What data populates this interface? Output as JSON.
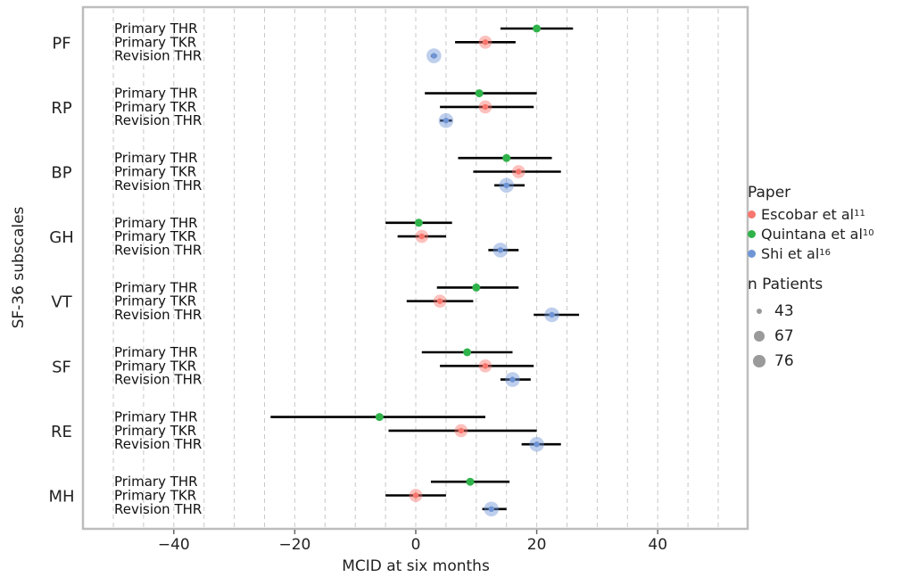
{
  "chart_data": {
    "type": "scatter",
    "xlabel": "MCID at six months",
    "ylabel": "SF-36 subscales",
    "xlim": [
      -55,
      54
    ],
    "x_ticks": [
      -40,
      -20,
      0,
      20,
      40
    ],
    "x_tick_labels": [
      "−40",
      "−20",
      "0",
      "20",
      "40"
    ],
    "minor_grid": [
      -50,
      -45,
      -35,
      -30,
      -25,
      -15,
      -10,
      -5,
      5,
      10,
      15,
      25,
      30,
      35,
      45,
      50
    ],
    "grid": true,
    "legend_position": "right",
    "colors": {
      "Escobar": "#f8766d",
      "Quintana": "#2fb34a",
      "Shi": "#6f95d6"
    },
    "row_labels": [
      "Primary THR",
      "Primary TKR",
      "Revision THR"
    ],
    "groups": [
      {
        "name": "PF",
        "rows": [
          {
            "label": "Primary THR",
            "paper": "Quintana",
            "x": 20,
            "lo": 14,
            "hi": 26,
            "n": 43
          },
          {
            "label": "Primary TKR",
            "paper": "Escobar",
            "x": 11.5,
            "lo": 6.5,
            "hi": 16.5,
            "n": 67
          },
          {
            "label": "Revision THR",
            "paper": "Shi",
            "x": 3,
            "lo": 2.5,
            "hi": 3.5,
            "n": 76
          }
        ]
      },
      {
        "name": "RP",
        "rows": [
          {
            "label": "Primary THR",
            "paper": "Quintana",
            "x": 10.5,
            "lo": 1.5,
            "hi": 20,
            "n": 43
          },
          {
            "label": "Primary TKR",
            "paper": "Escobar",
            "x": 11.5,
            "lo": 4,
            "hi": 19.5,
            "n": 67
          },
          {
            "label": "Revision THR",
            "paper": "Shi",
            "x": 5,
            "lo": 4,
            "hi": 6,
            "n": 76
          }
        ]
      },
      {
        "name": "BP",
        "rows": [
          {
            "label": "Primary THR",
            "paper": "Quintana",
            "x": 15,
            "lo": 7,
            "hi": 22.5,
            "n": 43
          },
          {
            "label": "Primary TKR",
            "paper": "Escobar",
            "x": 17,
            "lo": 9.5,
            "hi": 24,
            "n": 67
          },
          {
            "label": "Revision THR",
            "paper": "Shi",
            "x": 15,
            "lo": 13,
            "hi": 18,
            "n": 76
          }
        ]
      },
      {
        "name": "GH",
        "rows": [
          {
            "label": "Primary THR",
            "paper": "Quintana",
            "x": 0.5,
            "lo": -5,
            "hi": 6,
            "n": 43
          },
          {
            "label": "Primary TKR",
            "paper": "Escobar",
            "x": 1,
            "lo": -3,
            "hi": 5,
            "n": 67
          },
          {
            "label": "Revision THR",
            "paper": "Shi",
            "x": 14,
            "lo": 12,
            "hi": 17,
            "n": 76
          }
        ]
      },
      {
        "name": "VT",
        "rows": [
          {
            "label": "Primary THR",
            "paper": "Quintana",
            "x": 10,
            "lo": 3.5,
            "hi": 17,
            "n": 43
          },
          {
            "label": "Primary TKR",
            "paper": "Escobar",
            "x": 4,
            "lo": -1.5,
            "hi": 9.5,
            "n": 67
          },
          {
            "label": "Revision THR",
            "paper": "Shi",
            "x": 22.5,
            "lo": 19.5,
            "hi": 27,
            "n": 76
          }
        ]
      },
      {
        "name": "SF",
        "rows": [
          {
            "label": "Primary THR",
            "paper": "Quintana",
            "x": 8.5,
            "lo": 1,
            "hi": 16,
            "n": 43
          },
          {
            "label": "Primary TKR",
            "paper": "Escobar",
            "x": 11.5,
            "lo": 4,
            "hi": 19.5,
            "n": 67
          },
          {
            "label": "Revision THR",
            "paper": "Shi",
            "x": 16,
            "lo": 14,
            "hi": 19,
            "n": 76
          }
        ]
      },
      {
        "name": "RE",
        "rows": [
          {
            "label": "Primary THR",
            "paper": "Quintana",
            "x": -6,
            "lo": -24,
            "hi": 11.5,
            "n": 43
          },
          {
            "label": "Primary TKR",
            "paper": "Escobar",
            "x": 7.5,
            "lo": -4.5,
            "hi": 20,
            "n": 67
          },
          {
            "label": "Revision THR",
            "paper": "Shi",
            "x": 20,
            "lo": 17.5,
            "hi": 24,
            "n": 76
          }
        ]
      },
      {
        "name": "MH",
        "rows": [
          {
            "label": "Primary THR",
            "paper": "Quintana",
            "x": 9,
            "lo": 2.5,
            "hi": 15.5,
            "n": 43
          },
          {
            "label": "Primary TKR",
            "paper": "Escobar",
            "x": 0,
            "lo": -5,
            "hi": 5,
            "n": 67
          },
          {
            "label": "Revision THR",
            "paper": "Shi",
            "x": 12.5,
            "lo": 11,
            "hi": 15,
            "n": 76
          }
        ]
      }
    ]
  },
  "legend": {
    "paper_title": "Paper",
    "papers": [
      {
        "key": "Escobar",
        "name": "Escobar et al",
        "ref": "11",
        "color": "#f8766d"
      },
      {
        "key": "Quintana",
        "name": "Quintana et al",
        "ref": "10",
        "color": "#2fb34a"
      },
      {
        "key": "Shi",
        "name": "Shi  et al",
        "ref": "16",
        "color": "#6f95d6"
      }
    ],
    "size_title": "n Patients",
    "sizes": [
      {
        "label": "43",
        "value": 43
      },
      {
        "label": "67",
        "value": 67
      },
      {
        "label": "76",
        "value": 76
      }
    ]
  }
}
